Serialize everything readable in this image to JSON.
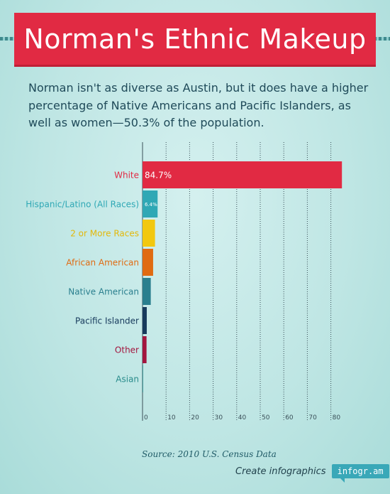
{
  "header": {
    "title": "Norman's Ethnic Makeup"
  },
  "intro": {
    "text": "Norman isn't as diverse as Austin, but it does have a higher percentage of Native Americans and Pacific Islanders, as well as women—50.3% of the population."
  },
  "colors": {
    "banner": "#e12a43",
    "axis": "#3a4f58",
    "grid": "#3a4f58"
  },
  "chart_data": {
    "type": "bar",
    "orientation": "horizontal",
    "categories": [
      "White",
      "Hispanic/Latino (All Races)",
      "2 or More Races",
      "African American",
      "Native American",
      "Pacific Islander",
      "Other",
      "Asian"
    ],
    "values": [
      84.7,
      6.4,
      5.3,
      4.5,
      3.5,
      1.8,
      1.7,
      0.1
    ],
    "value_labels": [
      "84.7%",
      "6.4%",
      "",
      "",
      "",
      "",
      "",
      ""
    ],
    "colors": [
      "#e12a43",
      "#2fa8b5",
      "#f2c80f",
      "#e06b12",
      "#2a7f8e",
      "#173a5c",
      "#a3153e",
      "#2a9090"
    ],
    "label_colors": [
      "#e12a43",
      "#2fa8b5",
      "#e3b80a",
      "#e06b12",
      "#2a7f8e",
      "#173a5c",
      "#a3153e",
      "#2a8c8c"
    ],
    "x_ticks": [
      0,
      10,
      20,
      30,
      40,
      50,
      60,
      70,
      80
    ],
    "xlim": [
      0,
      85
    ],
    "grid": "vertical dotted",
    "source": "Source: 2010 U.S. Census Data"
  },
  "footer": {
    "credit": "Create infographics",
    "badge": "infogr.am"
  }
}
